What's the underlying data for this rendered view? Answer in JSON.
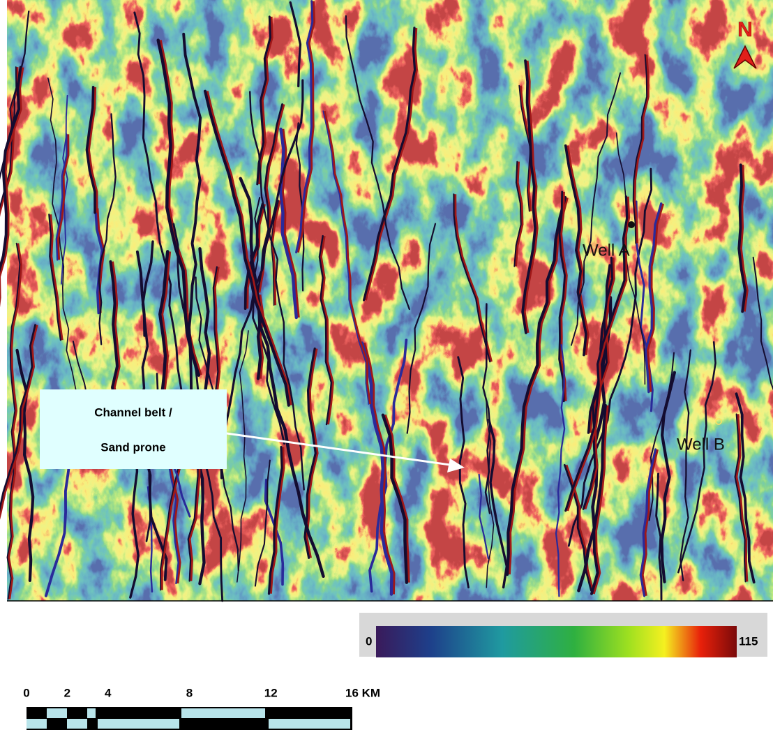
{
  "map": {
    "north_label": "N",
    "wells": [
      {
        "label": "Well A"
      },
      {
        "label": "Well B"
      }
    ],
    "annotation": {
      "lines": [
        "Channel belt /",
        "Sand prone"
      ]
    },
    "color_scale": {
      "min": 0,
      "max": 115
    },
    "scale_bar": {
      "ticks": [
        0,
        2,
        4,
        8,
        12,
        {
          "value": 16,
          "label": "16 KM"
        }
      ]
    }
  }
}
